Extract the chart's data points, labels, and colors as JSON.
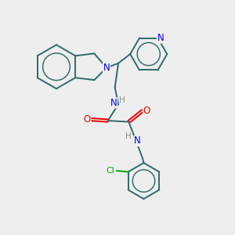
{
  "bg_color": "#eeeeee",
  "bond_color": "#2d6b6b",
  "N_color": "#0000ee",
  "O_color": "#ee0000",
  "Cl_color": "#00aa00",
  "H_color": "#888888",
  "bond_width": 1.4,
  "fig_w": 3.0,
  "fig_h": 3.0,
  "dpi": 100,
  "xlim": [
    0,
    10
  ],
  "ylim": [
    0,
    10
  ]
}
